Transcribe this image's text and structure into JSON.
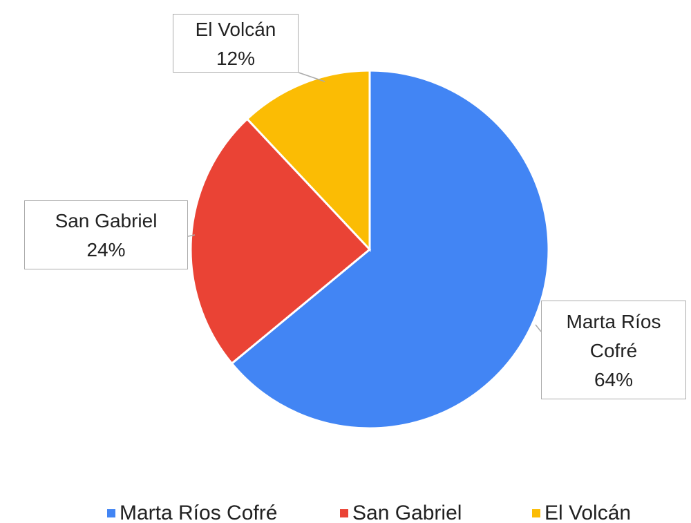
{
  "chart_data": {
    "type": "pie",
    "categories": [
      "Marta Ríos Cofré",
      "San Gabriel",
      "El Volcán"
    ],
    "values": [
      64,
      24,
      12
    ],
    "value_labels": [
      "64%",
      "24%",
      "12%"
    ],
    "colors": [
      "#4285f4",
      "#ea4335",
      "#fbbc04"
    ],
    "legend": "bottom"
  }
}
